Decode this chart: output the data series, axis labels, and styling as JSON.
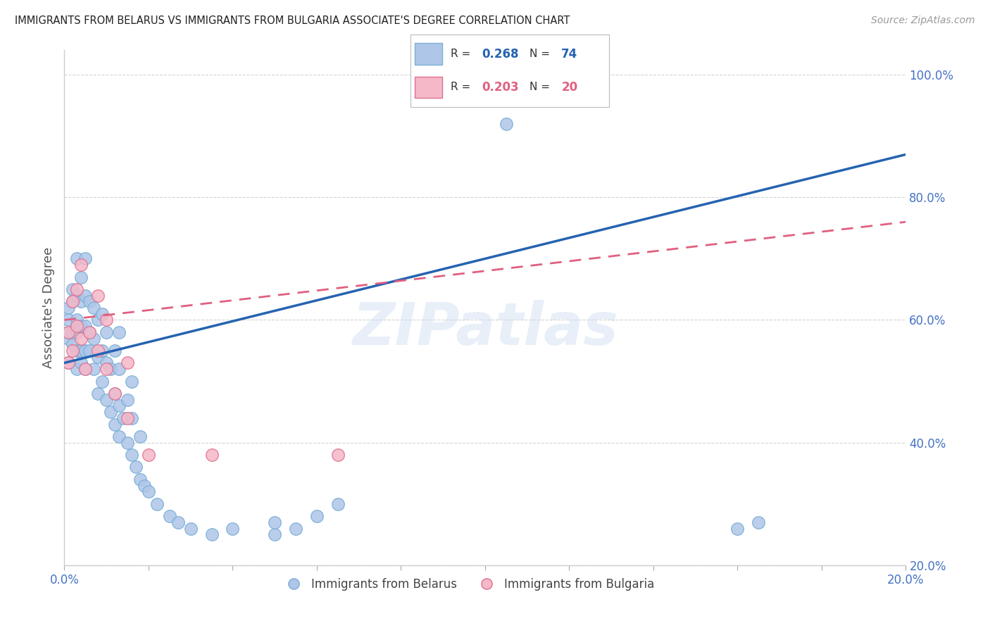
{
  "title": "IMMIGRANTS FROM BELARUS VS IMMIGRANTS FROM BULGARIA ASSOCIATE'S DEGREE CORRELATION CHART",
  "source_text": "Source: ZipAtlas.com",
  "ylabel": "Associate's Degree",
  "watermark": "ZIPatlas",
  "x_min": 0.0,
  "x_max": 0.2,
  "y_min": 0.2,
  "y_max": 1.04,
  "right_yticks": [
    0.2,
    0.4,
    0.6,
    0.8,
    1.0
  ],
  "right_yticklabels": [
    "20.0%",
    "40.0%",
    "60.0%",
    "80.0%",
    "100.0%"
  ],
  "xticks": [
    0.0,
    0.02,
    0.04,
    0.06,
    0.08,
    0.1,
    0.12,
    0.14,
    0.16,
    0.18,
    0.2
  ],
  "xticklabels": [
    "0.0%",
    "",
    "",
    "",
    "",
    "",
    "",
    "",
    "",
    "",
    "20.0%"
  ],
  "series_belarus": {
    "label": "Immigrants from Belarus",
    "color": "#aec6e8",
    "edge_color": "#7aaed6",
    "R": 0.268,
    "N": 74,
    "line_color": "#2563b0",
    "line_style": "solid",
    "x": [
      0.001,
      0.001,
      0.001,
      0.001,
      0.001,
      0.002,
      0.002,
      0.002,
      0.002,
      0.003,
      0.003,
      0.003,
      0.003,
      0.003,
      0.003,
      0.004,
      0.004,
      0.004,
      0.004,
      0.004,
      0.005,
      0.005,
      0.005,
      0.005,
      0.005,
      0.006,
      0.006,
      0.006,
      0.007,
      0.007,
      0.007,
      0.008,
      0.008,
      0.008,
      0.009,
      0.009,
      0.009,
      0.01,
      0.01,
      0.01,
      0.011,
      0.011,
      0.012,
      0.012,
      0.012,
      0.013,
      0.013,
      0.013,
      0.013,
      0.014,
      0.015,
      0.015,
      0.016,
      0.016,
      0.016,
      0.017,
      0.018,
      0.018,
      0.019,
      0.02,
      0.022,
      0.025,
      0.027,
      0.03,
      0.035,
      0.04,
      0.05,
      0.05,
      0.055,
      0.06,
      0.065,
      0.105,
      0.16,
      0.165
    ],
    "y": [
      0.53,
      0.57,
      0.58,
      0.6,
      0.62,
      0.56,
      0.58,
      0.63,
      0.65,
      0.52,
      0.55,
      0.58,
      0.6,
      0.64,
      0.7,
      0.53,
      0.55,
      0.59,
      0.63,
      0.67,
      0.52,
      0.55,
      0.59,
      0.64,
      0.7,
      0.55,
      0.58,
      0.63,
      0.52,
      0.57,
      0.62,
      0.48,
      0.54,
      0.6,
      0.5,
      0.55,
      0.61,
      0.47,
      0.53,
      0.58,
      0.45,
      0.52,
      0.43,
      0.48,
      0.55,
      0.41,
      0.46,
      0.52,
      0.58,
      0.44,
      0.4,
      0.47,
      0.38,
      0.44,
      0.5,
      0.36,
      0.34,
      0.41,
      0.33,
      0.32,
      0.3,
      0.28,
      0.27,
      0.26,
      0.25,
      0.26,
      0.25,
      0.27,
      0.26,
      0.28,
      0.3,
      0.92,
      0.26,
      0.27
    ]
  },
  "series_bulgaria": {
    "label": "Immigrants from Bulgaria",
    "color": "#f5b8c8",
    "edge_color": "#e07090",
    "R": 0.203,
    "N": 20,
    "line_color": "#e06080",
    "line_style": "dashed",
    "x": [
      0.001,
      0.001,
      0.002,
      0.002,
      0.003,
      0.003,
      0.004,
      0.004,
      0.005,
      0.006,
      0.008,
      0.008,
      0.01,
      0.01,
      0.012,
      0.015,
      0.015,
      0.02,
      0.035,
      0.065
    ],
    "y": [
      0.53,
      0.58,
      0.55,
      0.63,
      0.59,
      0.65,
      0.57,
      0.69,
      0.52,
      0.58,
      0.55,
      0.64,
      0.52,
      0.6,
      0.48,
      0.44,
      0.53,
      0.38,
      0.38,
      0.38
    ]
  },
  "title_color": "#222222",
  "axis_label_color": "#555555",
  "tick_color": "#4472c4",
  "grid_color": "#c8c8c8",
  "background_color": "#ffffff",
  "legend_facecolor": "#ffffff",
  "legend_edgecolor": "#bbbbbb"
}
